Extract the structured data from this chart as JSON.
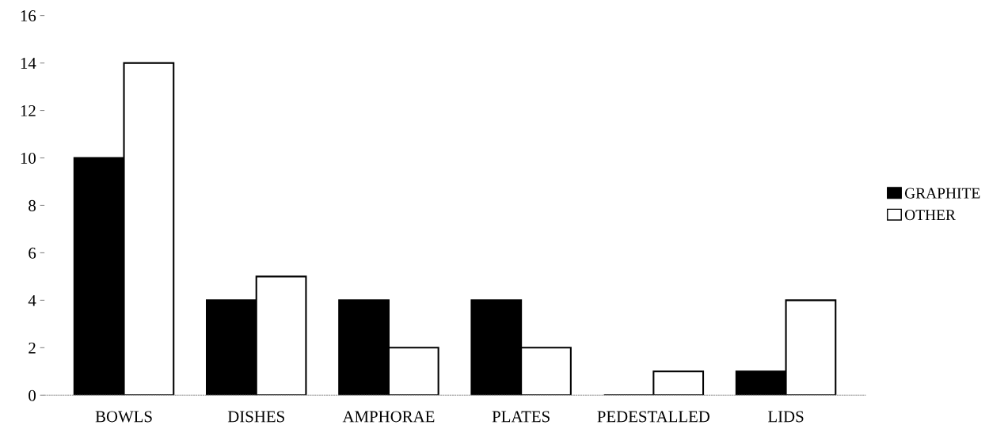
{
  "chart_data": {
    "type": "bar",
    "categories": [
      "BOWLS",
      "DISHES",
      "AMPHORAE",
      "PLATES",
      "PEDESTALLED",
      "LIDS"
    ],
    "series": [
      {
        "name": "GRAPHITE",
        "color": "#000000",
        "values": [
          10,
          4,
          4,
          4,
          0,
          1
        ]
      },
      {
        "name": "OTHER",
        "color": "#ffffff",
        "values": [
          14,
          5,
          2,
          2,
          1,
          4
        ]
      }
    ],
    "ylim": [
      0,
      16
    ],
    "yticks": [
      0,
      2,
      4,
      6,
      8,
      10,
      12,
      14,
      16
    ],
    "grid": false,
    "legend": "right"
  }
}
